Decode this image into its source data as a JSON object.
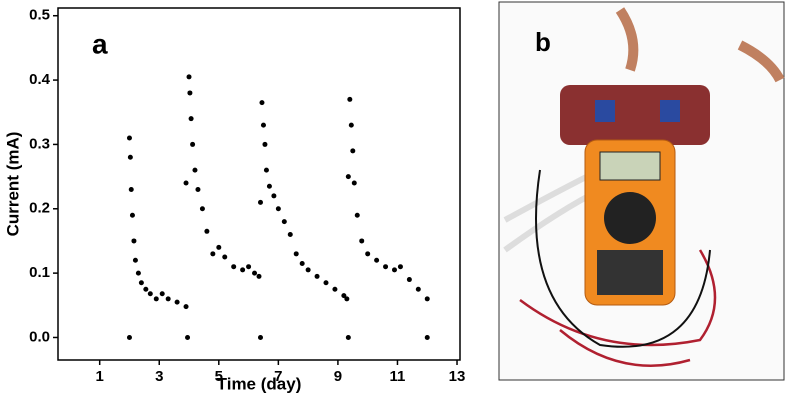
{
  "chart_data": {
    "type": "scatter",
    "panel_label": "a",
    "xlabel": "Time (day)",
    "ylabel": "Current (mA)",
    "xlim": [
      -0.4,
      13.1
    ],
    "ylim": [
      -0.035,
      0.512
    ],
    "xticks": [
      1,
      3,
      5,
      7,
      9,
      11,
      13
    ],
    "yticks": [
      {
        "value": 0,
        "label": "0.0"
      },
      0.1,
      0.2,
      0.3,
      0.4,
      0.5
    ],
    "series": [
      {
        "color": "#000000",
        "x": [
          2.0,
          2.03,
          2.06,
          2.1,
          2.15,
          2.2,
          2.3,
          2.4,
          2.55,
          2.7,
          2.9,
          3.1,
          3.3,
          3.6,
          3.9,
          2.0,
          3.95,
          3.9,
          4.0,
          4.03,
          4.07,
          4.12,
          4.2,
          4.3,
          4.45,
          4.6,
          4.8,
          5.0,
          5.2,
          5.5,
          5.8,
          6.0,
          6.2,
          6.35,
          6.4,
          6.4,
          6.45,
          6.5,
          6.55,
          6.6,
          6.7,
          6.85,
          7.0,
          7.2,
          7.4,
          7.6,
          7.8,
          8.0,
          8.3,
          8.6,
          8.9,
          9.2,
          9.3,
          9.35,
          9.35,
          9.4,
          9.45,
          9.5,
          9.55,
          9.65,
          9.8,
          10.0,
          10.3,
          10.6,
          10.9,
          11.1,
          11.4,
          11.7,
          12.0,
          12.0
        ],
        "values": [
          0.31,
          0.28,
          0.23,
          0.19,
          0.15,
          0.12,
          0.1,
          0.085,
          0.075,
          0.068,
          0.06,
          0.068,
          0.06,
          0.055,
          0.048,
          0.0,
          0.0,
          0.24,
          0.405,
          0.38,
          0.34,
          0.3,
          0.26,
          0.23,
          0.2,
          0.165,
          0.13,
          0.14,
          0.125,
          0.11,
          0.105,
          0.11,
          0.1,
          0.095,
          0.0,
          0.21,
          0.365,
          0.33,
          0.3,
          0.26,
          0.235,
          0.22,
          0.2,
          0.18,
          0.16,
          0.13,
          0.115,
          0.105,
          0.095,
          0.085,
          0.075,
          0.065,
          0.06,
          0.0,
          0.25,
          0.37,
          0.33,
          0.29,
          0.24,
          0.19,
          0.15,
          0.13,
          0.12,
          0.11,
          0.105,
          0.11,
          0.09,
          0.075,
          0.06,
          0.0
        ]
      }
    ]
  },
  "photo": {
    "panel_label": "b"
  }
}
